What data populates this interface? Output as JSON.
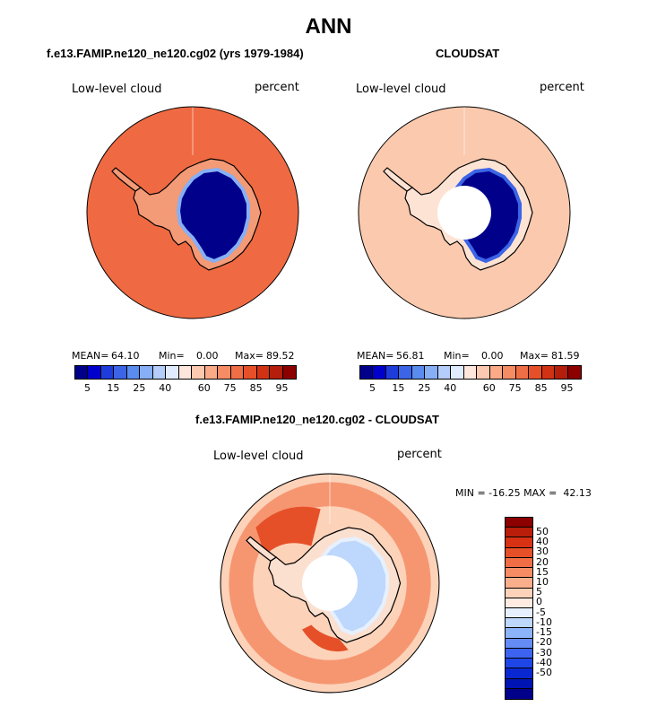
{
  "title": "ANN",
  "colors": {
    "abs_scale": [
      "#00008b",
      "#0000cd",
      "#1e3cdc",
      "#3c64e6",
      "#5a8cf0",
      "#87aff5",
      "#b4cdfa",
      "#e1ebff",
      "#ffe6dc",
      "#fcc8af",
      "#faaa87",
      "#f58c64",
      "#f06e46",
      "#e65028",
      "#d23214",
      "#b41e0a",
      "#8c0000"
    ],
    "diff_scale": [
      "#00008b",
      "#0014b4",
      "#0a28d2",
      "#1e46e6",
      "#3c64f0",
      "#648cf5",
      "#8cb4fa",
      "#bed7fc",
      "#e6f0ff",
      "#ffebe1",
      "#fcd2b9",
      "#faaf8c",
      "#f58c64",
      "#f06e46",
      "#e65028",
      "#d73214",
      "#b91e0a",
      "#8c0000"
    ],
    "land_outline": "#000000"
  },
  "panels": [
    {
      "title": "f.e13.FAMIP.ne120_ne120.cg02 (yrs 1979-1984)",
      "variable": "Low-level cloud",
      "units": "percent",
      "mean_label": "MEAN=",
      "mean": "64.10",
      "min_label": "Min=",
      "min": "0.00",
      "max_label": "Max=",
      "max": "89.52",
      "ocean_color": "#ef6a42",
      "coast_color": "#f39a76",
      "ice_color": "#00008b",
      "ice_edge_color": "#87aff5",
      "has_pole_hole": false
    },
    {
      "title": "CLOUDSAT",
      "variable": "Low-level cloud",
      "units": "percent",
      "mean_label": "MEAN=",
      "mean": "56.81",
      "min_label": "Min=",
      "min": "0.00",
      "max_label": "Max=",
      "max": "81.59",
      "ocean_color": "#fbc9ae",
      "coast_color": "#fde3d4",
      "ice_color": "#00008b",
      "ice_edge_color": "#3c64e6",
      "has_pole_hole": true
    }
  ],
  "abs_colorbar_ticks": [
    "5",
    "15",
    "25",
    "40",
    "60",
    "75",
    "85",
    "95"
  ],
  "diff_panel": {
    "title": "f.e13.FAMIP.ne120_ne120.cg02 - CLOUDSAT",
    "variable": "Low-level cloud",
    "units": "percent",
    "stats": "MIN = -16.25 MAX =  42.13",
    "ocean_color": "#fcd2b9",
    "ring_color": "#f58c64",
    "hot_color": "#e65028",
    "ice_color": "#bed7fc",
    "has_pole_hole": true
  },
  "diff_colorbar_ticks": [
    "50",
    "40",
    "30",
    "20",
    "15",
    "10",
    "5",
    "0",
    "-5",
    "-10",
    "-15",
    "-20",
    "-30",
    "-40",
    "-50"
  ]
}
